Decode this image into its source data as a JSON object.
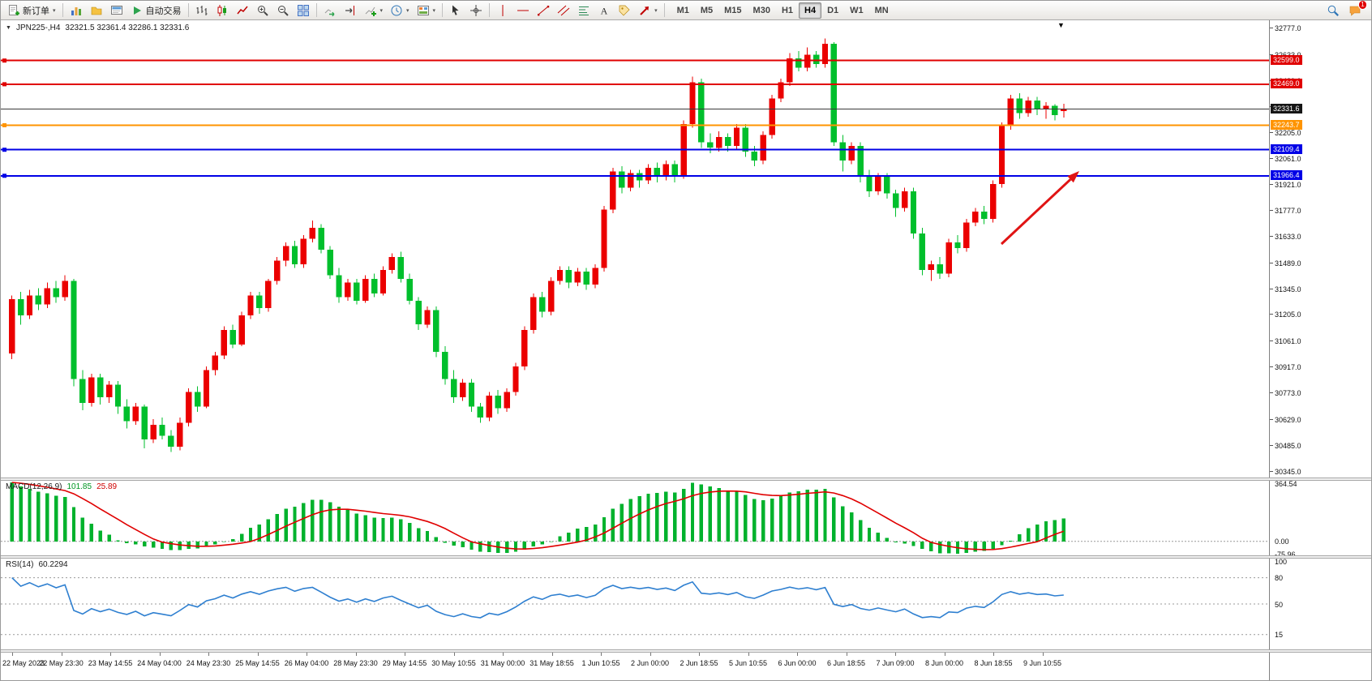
{
  "toolbar": {
    "left_items": [
      {
        "type": "button",
        "name": "new-order-button",
        "icon": "new-order",
        "label": "新订单",
        "caret": true
      },
      {
        "type": "divider"
      },
      {
        "type": "button",
        "name": "market-watch-button",
        "icon": "market-watch"
      },
      {
        "type": "button",
        "name": "navigator-button",
        "icon": "navigator"
      },
      {
        "type": "button",
        "name": "terminal-button",
        "icon": "terminal"
      },
      {
        "type": "button",
        "name": "autotrading-button",
        "icon": "autotrading",
        "label": "自动交易"
      },
      {
        "type": "divider"
      },
      {
        "type": "button",
        "name": "bar-chart-button",
        "icon": "bar-chart"
      },
      {
        "type": "button",
        "name": "candlestick-chart-button",
        "icon": "candles"
      },
      {
        "type": "button",
        "name": "line-chart-button",
        "icon": "line-chart"
      },
      {
        "type": "button",
        "name": "zoom-in-button",
        "icon": "zoom-in"
      },
      {
        "type": "button",
        "name": "zoom-out-button",
        "icon": "zoom-out"
      },
      {
        "type": "button",
        "name": "tile-windows-button",
        "icon": "tile"
      },
      {
        "type": "divider"
      },
      {
        "type": "button",
        "name": "auto-scroll-button",
        "icon": "auto-scroll"
      },
      {
        "type": "button",
        "name": "chart-shift-button",
        "icon": "chart-shift"
      },
      {
        "type": "button",
        "name": "indicators-button",
        "icon": "indicators",
        "caret": true
      },
      {
        "type": "button",
        "name": "periods-button",
        "icon": "periods",
        "caret": true
      },
      {
        "type": "button",
        "name": "templates-button",
        "icon": "templates",
        "caret": true
      },
      {
        "type": "divider"
      },
      {
        "type": "button",
        "name": "cursor-button",
        "icon": "cursor"
      },
      {
        "type": "button",
        "name": "crosshair-button",
        "icon": "crosshair"
      },
      {
        "type": "divider"
      },
      {
        "type": "button",
        "name": "vertical-line-button",
        "icon": "vline"
      },
      {
        "type": "button",
        "name": "horizontal-line-button",
        "icon": "hline"
      },
      {
        "type": "button",
        "name": "trendline-button",
        "icon": "trendline"
      },
      {
        "type": "button",
        "name": "equidistant-channel-button",
        "icon": "channel"
      },
      {
        "type": "button",
        "name": "fibonacci-button",
        "icon": "fibo"
      },
      {
        "type": "button",
        "name": "text-button",
        "icon": "text"
      },
      {
        "type": "button",
        "name": "text-label-button",
        "icon": "tag"
      },
      {
        "type": "button",
        "name": "arrows-button",
        "icon": "arrow-ne",
        "caret": true
      },
      {
        "type": "divider"
      }
    ],
    "timeframes": {
      "items": [
        "M1",
        "M5",
        "M15",
        "M30",
        "H1",
        "H4",
        "D1",
        "W1",
        "MN"
      ],
      "active": "H4"
    },
    "right_items": [
      {
        "type": "button",
        "name": "search-button",
        "icon": "search"
      },
      {
        "type": "button",
        "name": "notifications-button",
        "icon": "chat",
        "badge": "1"
      }
    ]
  },
  "chart": {
    "header": {
      "collapse_icon": "▼",
      "title": "JPN225-,H4",
      "ohlc": "32321.5 32361.4 32286.1 32331.6"
    },
    "price_axis": {
      "ticks": [
        "32777.0",
        "32633.0",
        "32489.0",
        "32345.0",
        "32205.0",
        "32061.0",
        "31921.0",
        "31777.0",
        "31633.0",
        "31489.0",
        "31345.0",
        "31205.0",
        "31061.0",
        "30917.0",
        "30773.0",
        "30629.0",
        "30485.0",
        "30345.0"
      ]
    },
    "time_axis": {
      "labels": [
        "22 May 2023",
        "22 May 23:30",
        "23 May 14:55",
        "24 May 04:00",
        "24 May 23:30",
        "25 May 14:55",
        "26 May 04:00",
        "28 May 23:30",
        "29 May 14:55",
        "30 May 10:55",
        "31 May 00:00",
        "31 May 18:55",
        "1 Jun 10:55",
        "2 Jun 00:00",
        "2 Jun 18:55",
        "5 Jun 10:55",
        "6 Jun 00:00",
        "6 Jun 18:55",
        "7 Jun 09:00",
        "8 Jun 00:00",
        "8 Jun 18:55",
        "9 Jun 10:55"
      ]
    },
    "macd": {
      "name": "MACD(12,26,9)",
      "main_value": "101.85",
      "signal_value": "25.89",
      "axis": [
        "364.54",
        "0.00",
        "-75.96"
      ]
    },
    "rsi": {
      "name": "RSI(14)",
      "value": "60.2294",
      "axis": [
        "100",
        "80",
        "50",
        "15"
      ]
    }
  },
  "chart_data": {
    "type": "candlestick",
    "symbol": "JPN225-",
    "timeframe": "H4",
    "last_bar": {
      "open": 32321.5,
      "high": 32361.4,
      "low": 32286.1,
      "close": 32331.6
    },
    "y_domain": [
      30310,
      32820
    ],
    "up_color": "#EB0000",
    "down_color": "#00BF2C",
    "candles": [
      [
        30990,
        31310,
        30960,
        31290
      ],
      [
        31290,
        31330,
        31150,
        31200
      ],
      [
        31200,
        31340,
        31180,
        31310
      ],
      [
        31310,
        31350,
        31230,
        31260
      ],
      [
        31260,
        31380,
        31240,
        31350
      ],
      [
        31350,
        31390,
        31270,
        31300
      ],
      [
        31300,
        31420,
        31280,
        31390
      ],
      [
        31390,
        31400,
        30810,
        30850
      ],
      [
        30850,
        30900,
        30680,
        30720
      ],
      [
        30720,
        30880,
        30700,
        30860
      ],
      [
        30860,
        30880,
        30710,
        30750
      ],
      [
        30750,
        30840,
        30720,
        30820
      ],
      [
        30820,
        30840,
        30660,
        30700
      ],
      [
        30700,
        30740,
        30580,
        30620
      ],
      [
        30620,
        30720,
        30600,
        30700
      ],
      [
        30700,
        30710,
        30470,
        30520
      ],
      [
        30520,
        30630,
        30500,
        30600
      ],
      [
        30600,
        30640,
        30520,
        30540
      ],
      [
        30540,
        30570,
        30450,
        30480
      ],
      [
        30480,
        30640,
        30460,
        30610
      ],
      [
        30610,
        30800,
        30590,
        30780
      ],
      [
        30780,
        30810,
        30670,
        30700
      ],
      [
        30700,
        30920,
        30690,
        30900
      ],
      [
        30900,
        31000,
        30870,
        30980
      ],
      [
        30980,
        31140,
        30960,
        31120
      ],
      [
        31120,
        31150,
        31020,
        31040
      ],
      [
        31040,
        31220,
        31030,
        31200
      ],
      [
        31200,
        31330,
        31180,
        31310
      ],
      [
        31310,
        31330,
        31210,
        31240
      ],
      [
        31240,
        31400,
        31220,
        31390
      ],
      [
        31390,
        31520,
        31370,
        31500
      ],
      [
        31500,
        31600,
        31470,
        31580
      ],
      [
        31580,
        31610,
        31460,
        31480
      ],
      [
        31480,
        31640,
        31460,
        31620
      ],
      [
        31620,
        31720,
        31600,
        31680
      ],
      [
        31680,
        31700,
        31540,
        31560
      ],
      [
        31560,
        31580,
        31400,
        31420
      ],
      [
        31420,
        31460,
        31270,
        31300
      ],
      [
        31300,
        31400,
        31280,
        31380
      ],
      [
        31380,
        31400,
        31260,
        31280
      ],
      [
        31280,
        31420,
        31270,
        31400
      ],
      [
        31400,
        31430,
        31300,
        31320
      ],
      [
        31320,
        31470,
        31310,
        31450
      ],
      [
        31450,
        31540,
        31430,
        31520
      ],
      [
        31520,
        31550,
        31380,
        31400
      ],
      [
        31400,
        31430,
        31260,
        31280
      ],
      [
        31280,
        31300,
        31120,
        31150
      ],
      [
        31150,
        31250,
        31130,
        31230
      ],
      [
        31230,
        31250,
        30970,
        31000
      ],
      [
        31000,
        31030,
        30820,
        30850
      ],
      [
        30850,
        30900,
        30720,
        30750
      ],
      [
        30750,
        30850,
        30730,
        30830
      ],
      [
        30830,
        30850,
        30670,
        30700
      ],
      [
        30700,
        30720,
        30610,
        30640
      ],
      [
        30640,
        30780,
        30620,
        30760
      ],
      [
        30760,
        30790,
        30660,
        30690
      ],
      [
        30690,
        30800,
        30670,
        30780
      ],
      [
        30780,
        30940,
        30760,
        30920
      ],
      [
        30920,
        31140,
        30900,
        31120
      ],
      [
        31120,
        31320,
        31100,
        31300
      ],
      [
        31300,
        31330,
        31190,
        31220
      ],
      [
        31220,
        31410,
        31200,
        31390
      ],
      [
        31390,
        31470,
        31370,
        31450
      ],
      [
        31450,
        31470,
        31350,
        31380
      ],
      [
        31380,
        31460,
        31360,
        31440
      ],
      [
        31440,
        31460,
        31340,
        31370
      ],
      [
        31370,
        31480,
        31350,
        31460
      ],
      [
        31460,
        31800,
        31440,
        31780
      ],
      [
        31780,
        32010,
        31760,
        31990
      ],
      [
        31990,
        32020,
        31870,
        31900
      ],
      [
        31900,
        32000,
        31880,
        31980
      ],
      [
        31980,
        32000,
        31900,
        31940
      ],
      [
        31940,
        32030,
        31920,
        32010
      ],
      [
        32010,
        32040,
        31930,
        31960
      ],
      [
        31960,
        32050,
        31940,
        32030
      ],
      [
        32030,
        32050,
        31930,
        31970
      ],
      [
        31970,
        32270,
        31950,
        32250
      ],
      [
        32250,
        32510,
        32230,
        32480
      ],
      [
        32480,
        32500,
        32120,
        32150
      ],
      [
        32150,
        32200,
        32090,
        32120
      ],
      [
        32120,
        32210,
        32100,
        32180
      ],
      [
        32180,
        32200,
        32100,
        32130
      ],
      [
        32130,
        32250,
        32110,
        32230
      ],
      [
        32230,
        32250,
        32070,
        32100
      ],
      [
        32100,
        32130,
        32020,
        32050
      ],
      [
        32050,
        32210,
        32030,
        32190
      ],
      [
        32190,
        32410,
        32170,
        32390
      ],
      [
        32390,
        32500,
        32370,
        32480
      ],
      [
        32480,
        32640,
        32460,
        32610
      ],
      [
        32610,
        32650,
        32540,
        32560
      ],
      [
        32560,
        32670,
        32540,
        32630
      ],
      [
        32630,
        32650,
        32560,
        32580
      ],
      [
        32580,
        32720,
        32560,
        32690
      ],
      [
        32690,
        32700,
        32130,
        32150
      ],
      [
        32150,
        32190,
        31990,
        32050
      ],
      [
        32050,
        32150,
        32030,
        32130
      ],
      [
        32130,
        32150,
        31930,
        31960
      ],
      [
        31960,
        32000,
        31850,
        31880
      ],
      [
        31880,
        31980,
        31860,
        31960
      ],
      [
        31960,
        31980,
        31840,
        31870
      ],
      [
        31870,
        31890,
        31740,
        31790
      ],
      [
        31790,
        31900,
        31770,
        31880
      ],
      [
        31880,
        31900,
        31620,
        31650
      ],
      [
        31650,
        31680,
        31420,
        31450
      ],
      [
        31450,
        31500,
        31390,
        31480
      ],
      [
        31480,
        31520,
        31400,
        31430
      ],
      [
        31430,
        31620,
        31410,
        31600
      ],
      [
        31600,
        31640,
        31540,
        31570
      ],
      [
        31570,
        31730,
        31550,
        31710
      ],
      [
        31710,
        31790,
        31690,
        31770
      ],
      [
        31770,
        31800,
        31700,
        31730
      ],
      [
        31730,
        31940,
        31710,
        31920
      ],
      [
        31920,
        32260,
        31900,
        32240
      ],
      [
        32240,
        32410,
        32220,
        32390
      ],
      [
        32390,
        32420,
        32280,
        32310
      ],
      [
        32310,
        32400,
        32290,
        32380
      ],
      [
        32380,
        32400,
        32300,
        32330
      ],
      [
        32330,
        32370,
        32280,
        32350
      ],
      [
        32350,
        32360,
        32270,
        32300
      ],
      [
        32321.5,
        32361.4,
        32286.1,
        32331.6
      ]
    ],
    "hlines": [
      {
        "price": 32599.0,
        "label": "32599.0",
        "color": "#E00000",
        "kind": "resistance"
      },
      {
        "price": 32469.0,
        "label": "32469.0",
        "color": "#E00000",
        "kind": "resistance"
      },
      {
        "price": 32331.6,
        "label": "32331.6",
        "color": "#3A3A3A",
        "kind": "bid"
      },
      {
        "price": 32243.7,
        "label": "32243.7",
        "color": "#FF9400",
        "kind": "level"
      },
      {
        "price": 32109.4,
        "label": "32109.4",
        "color": "#0000E6",
        "kind": "support"
      },
      {
        "price": 31966.4,
        "label": "31966.4",
        "color": "#0000E6",
        "kind": "support"
      }
    ],
    "indicators": {
      "macd": {
        "fast": 12,
        "slow": 26,
        "signal": 9,
        "current_main": 101.85,
        "current_signal": 25.89,
        "display_range": [
          -75.96,
          364.54
        ],
        "histogram_color": "#00B22D",
        "signal_color": "#E00000"
      },
      "rsi": {
        "period": 14,
        "current": 60.2294,
        "levels": [
          80,
          50,
          15
        ],
        "line_color": "#2E7FD0",
        "display_range": [
          0,
          100
        ]
      }
    },
    "annotations": [
      {
        "type": "arrow",
        "from_xy": [
          1234,
          276
        ],
        "to_xy": [
          1330,
          186
        ],
        "color": "#E01414"
      }
    ]
  }
}
